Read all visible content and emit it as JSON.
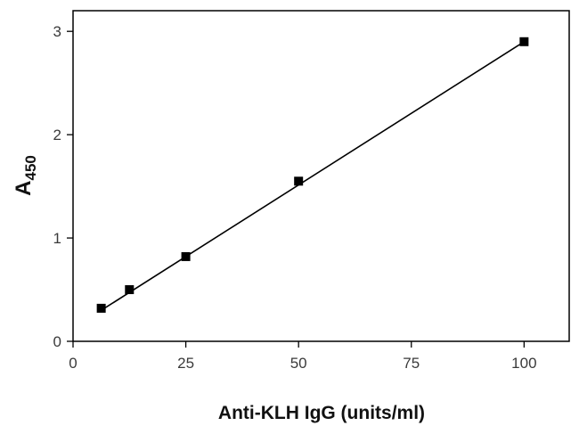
{
  "chart_data": {
    "type": "scatter",
    "title": "",
    "xlabel": "Anti-KLH IgG (units/ml)",
    "ylabel": {
      "main": "A",
      "subscript": "450"
    },
    "xlim": [
      0,
      110
    ],
    "ylim": [
      0,
      3.2
    ],
    "xticks": [
      0,
      25,
      50,
      75,
      100
    ],
    "yticks": [
      0,
      1,
      2,
      3
    ],
    "grid": false,
    "legend": "none",
    "series": [
      {
        "points": [
          {
            "x": 6.25,
            "y": 0.32
          },
          {
            "x": 12.5,
            "y": 0.5
          },
          {
            "x": 25,
            "y": 0.82
          },
          {
            "x": 50,
            "y": 1.55
          },
          {
            "x": 100,
            "y": 2.9
          }
        ],
        "marker": "square",
        "color": "#000000"
      }
    ],
    "fit_line": {
      "x": [
        6.25,
        100
      ],
      "y": [
        0.3,
        2.9
      ],
      "color": "#000000"
    }
  }
}
